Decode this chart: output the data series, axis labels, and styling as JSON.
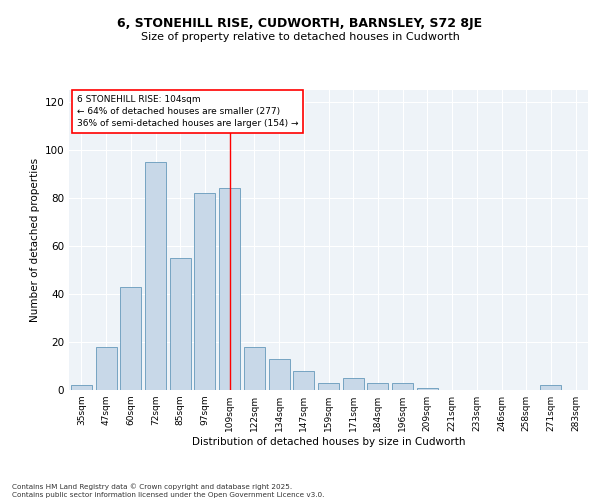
{
  "title_line1": "6, STONEHILL RISE, CUDWORTH, BARNSLEY, S72 8JE",
  "title_line2": "Size of property relative to detached houses in Cudworth",
  "xlabel": "Distribution of detached houses by size in Cudworth",
  "ylabel": "Number of detached properties",
  "categories": [
    "35sqm",
    "47sqm",
    "60sqm",
    "72sqm",
    "85sqm",
    "97sqm",
    "109sqm",
    "122sqm",
    "134sqm",
    "147sqm",
    "159sqm",
    "171sqm",
    "184sqm",
    "196sqm",
    "209sqm",
    "221sqm",
    "233sqm",
    "246sqm",
    "258sqm",
    "271sqm",
    "283sqm"
  ],
  "values": [
    2,
    18,
    43,
    95,
    55,
    82,
    84,
    18,
    13,
    8,
    3,
    5,
    3,
    3,
    1,
    0,
    0,
    0,
    0,
    2,
    0
  ],
  "bar_color": "#c8d8e8",
  "bar_edge_color": "#6699bb",
  "vline_x": 6,
  "vline_color": "red",
  "annotation_text": "6 STONEHILL RISE: 104sqm\n← 64% of detached houses are smaller (277)\n36% of semi-detached houses are larger (154) →",
  "annotation_box_color": "white",
  "annotation_box_edge_color": "red",
  "ylim": [
    0,
    125
  ],
  "yticks": [
    0,
    20,
    40,
    60,
    80,
    100,
    120
  ],
  "bg_color": "#eef3f8",
  "footer": "Contains HM Land Registry data © Crown copyright and database right 2025.\nContains public sector information licensed under the Open Government Licence v3.0."
}
